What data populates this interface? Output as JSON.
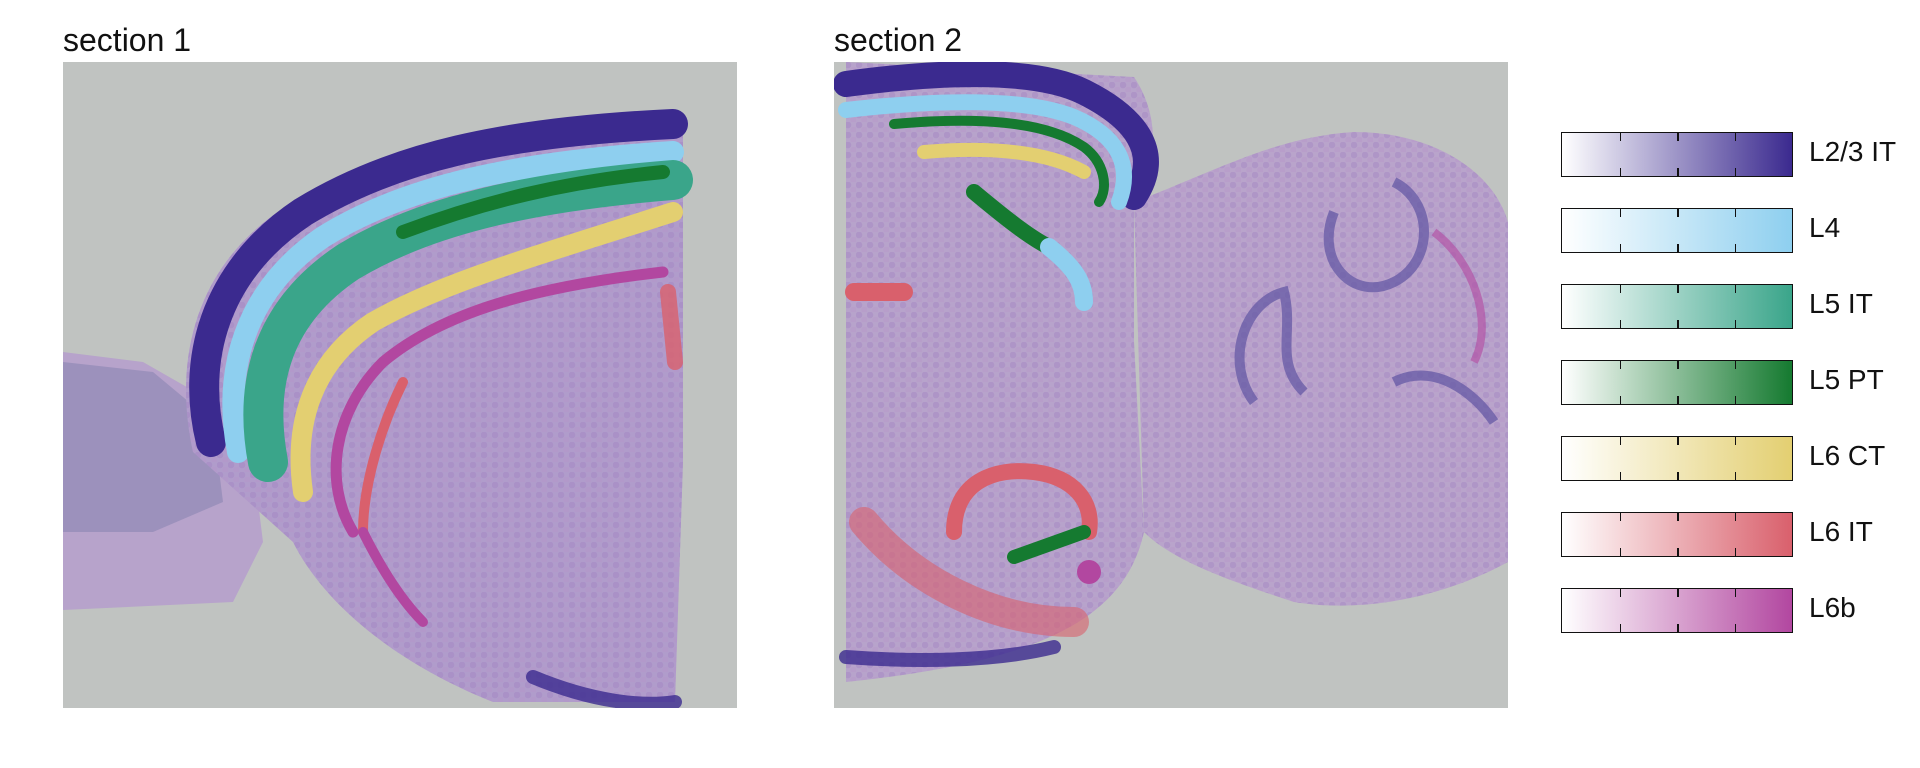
{
  "panels": [
    {
      "title": "section 1"
    },
    {
      "title": "section 2"
    }
  ],
  "legend": [
    {
      "label": "L2/3 IT",
      "color": "#3b2a8f"
    },
    {
      "label": "L4",
      "color": "#8ecfef"
    },
    {
      "label": "L5 IT",
      "color": "#3aa58a"
    },
    {
      "label": "L5 PT",
      "color": "#157a30"
    },
    {
      "label": "L6 CT",
      "color": "#e3cf71"
    },
    {
      "label": "L6 IT",
      "color": "#d9606c"
    },
    {
      "label": "L6b",
      "color": "#b247a0"
    }
  ]
}
